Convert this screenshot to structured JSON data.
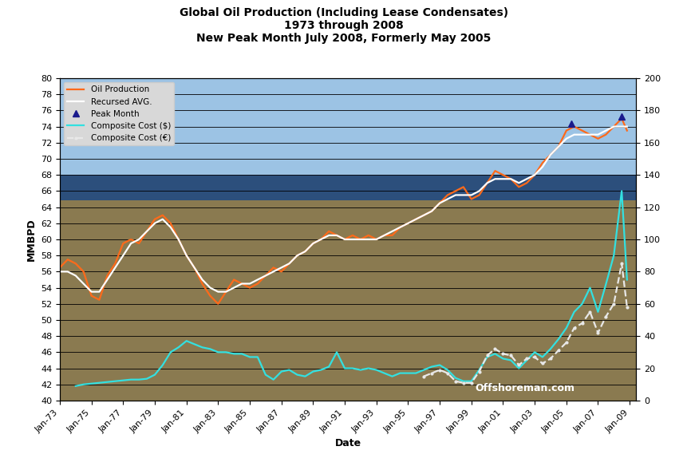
{
  "chart_data": {
    "type": "line",
    "title": "Global Oil Production (Including Lease Condensates)\n1973 through 2008\nNew Peak Month July 2008, Formerly May 2005",
    "x_label": "Date",
    "y_label": "MMBPD",
    "annotations": [
      "Offshoreman.com"
    ],
    "grid": true,
    "legend": "upper left",
    "x": [
      "1973-01",
      "1973-07",
      "1974-01",
      "1974-07",
      "1975-01",
      "1975-07",
      "1976-01",
      "1976-07",
      "1977-01",
      "1977-07",
      "1978-01",
      "1978-07",
      "1979-01",
      "1979-07",
      "1980-01",
      "1980-07",
      "1981-01",
      "1981-07",
      "1982-01",
      "1982-07",
      "1983-01",
      "1983-07",
      "1984-01",
      "1984-07",
      "1985-01",
      "1985-07",
      "1986-01",
      "1986-07",
      "1987-01",
      "1987-07",
      "1988-01",
      "1988-07",
      "1989-01",
      "1989-07",
      "1990-01",
      "1990-07",
      "1991-01",
      "1991-07",
      "1992-01",
      "1992-07",
      "1993-01",
      "1993-07",
      "1994-01",
      "1994-07",
      "1995-01",
      "1995-07",
      "1996-01",
      "1996-07",
      "1997-01",
      "1997-07",
      "1998-01",
      "1998-07",
      "1999-01",
      "1999-07",
      "2000-01",
      "2000-07",
      "2001-01",
      "2001-07",
      "2002-01",
      "2002-07",
      "2003-01",
      "2003-07",
      "2004-01",
      "2004-07",
      "2005-01",
      "2005-07",
      "2006-01",
      "2006-07",
      "2007-01",
      "2007-07",
      "2008-01",
      "2008-07",
      "2008-11"
    ],
    "xlim": [
      "1973-01",
      "2009-06"
    ],
    "xticks": [
      {
        "value": "1973-01",
        "label": "Jan-73"
      },
      {
        "value": "1975-01",
        "label": "Jan-75"
      },
      {
        "value": "1977-01",
        "label": "Jan-77"
      },
      {
        "value": "1979-01",
        "label": "Jan-79"
      },
      {
        "value": "1981-01",
        "label": "Jan-81"
      },
      {
        "value": "1983-01",
        "label": "Jan-83"
      },
      {
        "value": "1985-01",
        "label": "Jan-85"
      },
      {
        "value": "1987-01",
        "label": "Jan-87"
      },
      {
        "value": "1989-01",
        "label": "Jan-89"
      },
      {
        "value": "1991-01",
        "label": "Jan-91"
      },
      {
        "value": "1993-01",
        "label": "Jan-93"
      },
      {
        "value": "1995-01",
        "label": "Jan-95"
      },
      {
        "value": "1997-01",
        "label": "Jan-97"
      },
      {
        "value": "1999-01",
        "label": "Jan-99"
      },
      {
        "value": "2001-01",
        "label": "Jan-01"
      },
      {
        "value": "2003-01",
        "label": "Jan-03"
      },
      {
        "value": "2005-01",
        "label": "Jan-05"
      },
      {
        "value": "2007-01",
        "label": "Jan-07"
      },
      {
        "value": "2009-01",
        "label": "Jan-09"
      }
    ],
    "ylim": [
      40,
      80
    ],
    "yticks": [
      40,
      42,
      44,
      46,
      48,
      50,
      52,
      54,
      56,
      58,
      60,
      62,
      64,
      66,
      68,
      70,
      72,
      74,
      76,
      78,
      80
    ],
    "y2lim": [
      0,
      200
    ],
    "y2ticks": [
      0,
      20,
      40,
      60,
      80,
      100,
      120,
      140,
      160,
      180,
      200
    ],
    "series": [
      {
        "name": "Oil Production",
        "color": "#ff6a1a",
        "type": "line",
        "line_style": "solid",
        "values": [
          56.5,
          57.5,
          57.0,
          56.0,
          53.0,
          52.5,
          55.5,
          57.0,
          59.5,
          60.0,
          59.5,
          61.0,
          62.5,
          63.0,
          62.0,
          60.0,
          58.0,
          56.5,
          54.5,
          53.0,
          52.0,
          53.5,
          55.0,
          54.5,
          54.0,
          54.5,
          55.5,
          56.5,
          56.0,
          57.0,
          58.0,
          58.5,
          59.5,
          60.0,
          61.0,
          60.5,
          60.0,
          60.5,
          60.0,
          60.5,
          60.0,
          60.5,
          60.5,
          61.5,
          62.0,
          62.5,
          63.0,
          63.5,
          64.5,
          65.5,
          66.0,
          66.5,
          65.0,
          65.5,
          67.0,
          68.5,
          68.0,
          67.5,
          66.5,
          67.0,
          68.0,
          69.5,
          70.5,
          71.5,
          73.5,
          74.0,
          73.5,
          73.0,
          72.5,
          73.0,
          74.0,
          75.0,
          73.5
        ]
      },
      {
        "name": "Recursed AVG.",
        "color": "#ffffff",
        "type": "line",
        "line_style": "solid",
        "values": [
          56.0,
          56.0,
          55.5,
          54.5,
          53.5,
          53.5,
          55.0,
          56.5,
          58.0,
          59.5,
          60.0,
          61.0,
          62.0,
          62.5,
          61.5,
          60.0,
          58.0,
          56.5,
          55.0,
          54.0,
          53.5,
          53.5,
          54.0,
          54.5,
          54.5,
          55.0,
          55.5,
          56.0,
          56.5,
          57.0,
          58.0,
          58.5,
          59.5,
          60.0,
          60.5,
          60.5,
          60.0,
          60.0,
          60.0,
          60.0,
          60.0,
          60.5,
          61.0,
          61.5,
          62.0,
          62.5,
          63.0,
          63.5,
          64.5,
          65.0,
          65.5,
          65.5,
          65.5,
          66.0,
          67.0,
          67.5,
          67.5,
          67.5,
          67.0,
          67.5,
          68.0,
          69.0,
          70.5,
          71.5,
          72.5,
          73.0,
          73.0,
          73.0,
          73.0,
          73.5,
          74.0,
          74.0,
          74.0
        ]
      },
      {
        "name": "Peak Month",
        "color": "#1a1a8c",
        "type": "scatter",
        "marker": "^",
        "x": [
          "2005-05",
          "2008-07"
        ],
        "values": [
          74.4,
          75.2
        ]
      },
      {
        "name": "Composite Cost ($)",
        "color": "#33e0e0",
        "type": "line",
        "line_style": "solid",
        "axis": "y2",
        "values": [
          null,
          null,
          9,
          10,
          10.5,
          11,
          11.5,
          12,
          12.5,
          13,
          13,
          13.5,
          16,
          22,
          30,
          33,
          37,
          35,
          33,
          32,
          30,
          30,
          29,
          29,
          27,
          27,
          16,
          13,
          18,
          19,
          16,
          15,
          18,
          19,
          21,
          30,
          20,
          20,
          19,
          20,
          19,
          17,
          15,
          17,
          17,
          17,
          19,
          21,
          22,
          19,
          14,
          12,
          12,
          19,
          27,
          29,
          26,
          25,
          20,
          25,
          30,
          27,
          32,
          38,
          45,
          55,
          60,
          70,
          55,
          72,
          90,
          130,
          75
        ]
      },
      {
        "name": "Composite Cost (€)",
        "color": "#e8e8e8",
        "type": "line",
        "line_style": "dashed",
        "marker": ".",
        "axis": "y2",
        "values": [
          null,
          null,
          null,
          null,
          null,
          null,
          null,
          null,
          null,
          null,
          null,
          null,
          null,
          null,
          null,
          null,
          null,
          null,
          null,
          null,
          null,
          null,
          null,
          null,
          null,
          null,
          null,
          null,
          null,
          null,
          null,
          null,
          null,
          null,
          null,
          null,
          null,
          null,
          null,
          null,
          null,
          null,
          null,
          null,
          null,
          null,
          15,
          17,
          19,
          17,
          12,
          11,
          11,
          18,
          28,
          32,
          29,
          28,
          22,
          26,
          27,
          23,
          26,
          31,
          36,
          45,
          48,
          55,
          42,
          52,
          60,
          85,
          58
        ]
      }
    ]
  }
}
